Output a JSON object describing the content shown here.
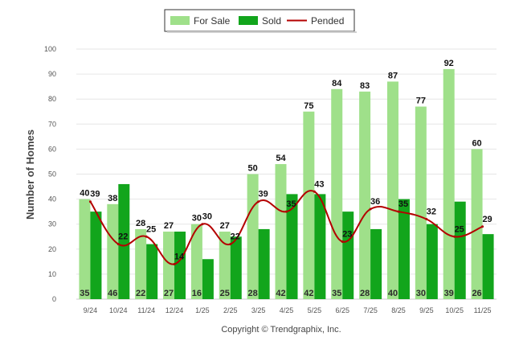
{
  "chart_data": {
    "type": "bar",
    "title": "",
    "xlabel": "",
    "ylabel": "Number of Homes",
    "ylim": [
      0,
      100
    ],
    "yticks": [
      "0",
      "10",
      "20",
      "30",
      "40",
      "50",
      "60",
      "70",
      "80",
      "90",
      "100"
    ],
    "categories": [
      "9/24",
      "10/24",
      "11/24",
      "12/24",
      "1/25",
      "2/25",
      "3/25",
      "4/25",
      "5/25",
      "6/25",
      "7/25",
      "8/25",
      "9/25",
      "10/25",
      "11/25"
    ],
    "series": [
      {
        "name": "For Sale",
        "kind": "bar",
        "color": "#9fe08a",
        "values": [
          40,
          38,
          28,
          27,
          30,
          27,
          50,
          54,
          75,
          84,
          83,
          87,
          77,
          92,
          60
        ]
      },
      {
        "name": "Sold",
        "kind": "bar",
        "color": "#12a51c",
        "values": [
          35,
          46,
          22,
          27,
          16,
          25,
          28,
          42,
          42,
          35,
          28,
          40,
          30,
          39,
          26
        ]
      },
      {
        "name": "Pended",
        "kind": "line",
        "color": "#b40000",
        "values": [
          39,
          22,
          25,
          14,
          30,
          22,
          39,
          35,
          43,
          23,
          36,
          35,
          32,
          25,
          29
        ]
      }
    ],
    "legend_position": "top-center",
    "grid": true
  },
  "footer": {
    "copyright": "Copyright © Trendgraphix, Inc."
  }
}
